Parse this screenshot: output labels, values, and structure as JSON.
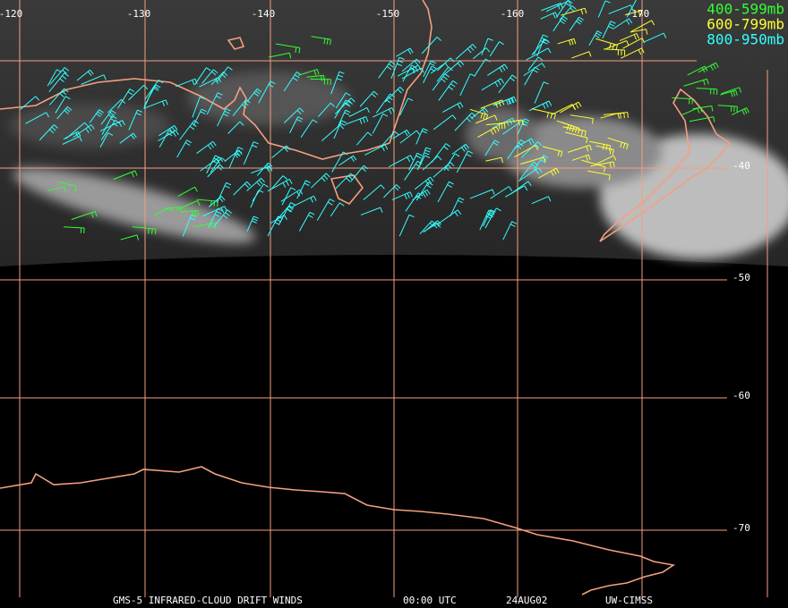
{
  "map": {
    "longitude_labels": [
      "-120",
      "-130",
      "-140",
      "-150",
      "-160",
      "-170"
    ],
    "latitude_labels": [
      "-40",
      "-50",
      "-60",
      "-70"
    ],
    "legend": [
      "400-599mb",
      "600-799mb",
      "800-950mb"
    ],
    "footer": [
      "GMS-5 INFRARED-CLOUD DRIFT WINDS",
      "00:00 UTC",
      "24AUG02",
      "UW-CIMSS"
    ]
  }
}
